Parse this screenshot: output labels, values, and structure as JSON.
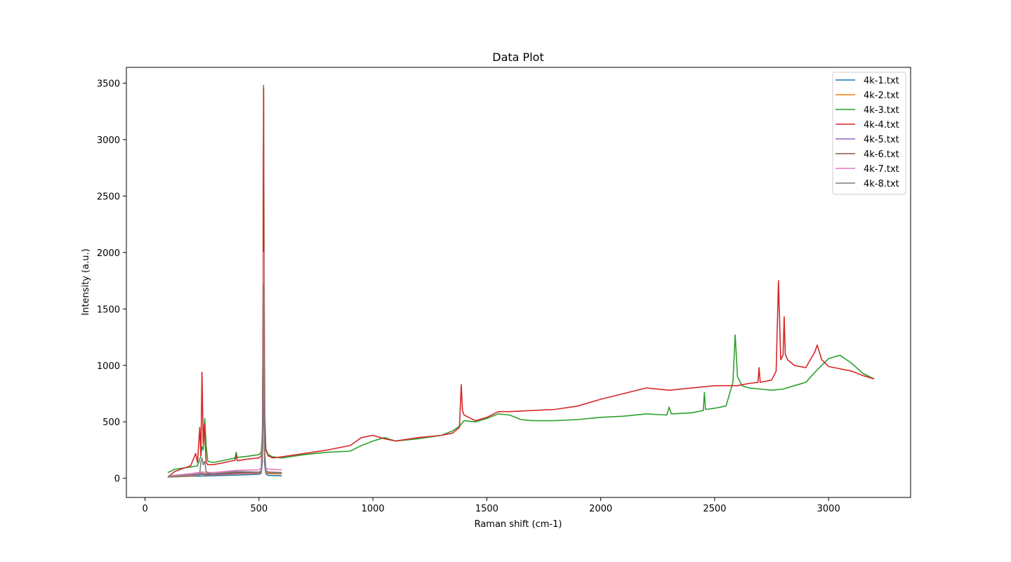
{
  "chart_data": {
    "type": "line",
    "title": "Data Plot",
    "xlabel": "Raman shift (cm-1)",
    "ylabel": "Intensity (a.u.)",
    "xlim": [
      -82,
      3360
    ],
    "ylim": [
      -170,
      3640
    ],
    "xticks": [
      0,
      500,
      1000,
      1500,
      2000,
      2500,
      3000
    ],
    "yticks": [
      0,
      500,
      1000,
      1500,
      2000,
      2500,
      3000,
      3500
    ],
    "grid": false,
    "legend_position": "top-right",
    "series": [
      {
        "name": "4k-1.txt",
        "color": "#1f77b4",
        "x": [
          100,
          200,
          250,
          300,
          400,
          500,
          510,
          515,
          518,
          520,
          522,
          525,
          530,
          540,
          600
        ],
        "y": [
          10,
          18,
          20,
          22,
          28,
          35,
          45,
          150,
          600,
          1150,
          500,
          120,
          40,
          25,
          22
        ]
      },
      {
        "name": "4k-2.txt",
        "color": "#ff7f0e",
        "x": [
          100,
          200,
          240,
          250,
          260,
          300,
          400,
          500,
          510,
          515,
          518,
          520,
          522,
          525,
          530,
          540,
          600
        ],
        "y": [
          12,
          20,
          30,
          45,
          30,
          28,
          40,
          45,
          55,
          200,
          700,
          1300,
          600,
          150,
          55,
          40,
          38
        ]
      },
      {
        "name": "4k-3.txt",
        "color": "#2ca02c",
        "x": [
          100,
          130,
          200,
          230,
          245,
          250,
          255,
          262,
          268,
          275,
          300,
          350,
          395,
          400,
          405,
          450,
          500,
          510,
          515,
          518,
          520,
          522,
          525,
          530,
          540,
          560,
          600,
          700,
          800,
          900,
          950,
          1000,
          1050,
          1100,
          1200,
          1300,
          1350,
          1380,
          1400,
          1450,
          1500,
          1550,
          1600,
          1650,
          1700,
          1800,
          1900,
          2000,
          2100,
          2200,
          2290,
          2300,
          2310,
          2400,
          2450,
          2455,
          2460,
          2500,
          2550,
          2580,
          2590,
          2595,
          2600,
          2620,
          2650,
          2700,
          2750,
          2800,
          2850,
          2900,
          2950,
          3000,
          3050,
          3100,
          3150,
          3200
        ],
        "y": [
          50,
          80,
          100,
          110,
          200,
          280,
          250,
          530,
          290,
          150,
          140,
          160,
          180,
          230,
          185,
          195,
          210,
          230,
          400,
          1700,
          3480,
          2000,
          600,
          260,
          210,
          190,
          180,
          210,
          230,
          240,
          290,
          330,
          360,
          330,
          350,
          380,
          420,
          460,
          510,
          500,
          530,
          570,
          560,
          520,
          510,
          510,
          520,
          540,
          550,
          570,
          560,
          630,
          570,
          580,
          600,
          760,
          610,
          620,
          640,
          850,
          1270,
          1100,
          900,
          820,
          800,
          790,
          780,
          790,
          820,
          850,
          960,
          1060,
          1090,
          1020,
          930,
          880
        ]
      },
      {
        "name": "4k-4.txt",
        "color": "#d62728",
        "x": [
          100,
          130,
          200,
          222,
          230,
          240,
          245,
          250,
          255,
          260,
          268,
          275,
          300,
          350,
          395,
          400,
          405,
          450,
          500,
          510,
          515,
          518,
          520,
          522,
          525,
          530,
          540,
          560,
          600,
          700,
          800,
          900,
          950,
          1000,
          1050,
          1100,
          1200,
          1300,
          1350,
          1380,
          1388,
          1393,
          1400,
          1420,
          1450,
          1500,
          1550,
          1600,
          1700,
          1800,
          1900,
          2000,
          2100,
          2200,
          2300,
          2400,
          2500,
          2600,
          2650,
          2690,
          2695,
          2700,
          2750,
          2770,
          2780,
          2790,
          2800,
          2805,
          2810,
          2820,
          2850,
          2900,
          2940,
          2950,
          2970,
          3000,
          3050,
          3100,
          3150,
          3200
        ],
        "y": [
          10,
          60,
          110,
          220,
          140,
          450,
          200,
          940,
          300,
          480,
          140,
          120,
          120,
          140,
          160,
          200,
          155,
          170,
          180,
          200,
          350,
          1500,
          3450,
          1800,
          500,
          250,
          200,
          180,
          190,
          220,
          250,
          290,
          360,
          380,
          350,
          330,
          360,
          380,
          400,
          450,
          830,
          600,
          560,
          540,
          510,
          540,
          590,
          590,
          600,
          610,
          640,
          700,
          750,
          800,
          780,
          800,
          820,
          820,
          840,
          850,
          980,
          850,
          870,
          950,
          1750,
          1050,
          1090,
          1430,
          1100,
          1050,
          1000,
          980,
          1120,
          1180,
          1050,
          990,
          970,
          950,
          910,
          880
        ]
      },
      {
        "name": "4k-5.txt",
        "color": "#9467bd",
        "x": [
          100,
          200,
          250,
          300,
          400,
          500,
          510,
          515,
          518,
          520,
          522,
          525,
          530,
          540,
          600
        ],
        "y": [
          15,
          25,
          35,
          30,
          45,
          50,
          60,
          180,
          650,
          1200,
          550,
          150,
          60,
          50,
          45
        ]
      },
      {
        "name": "4k-6.txt",
        "color": "#8c564b",
        "x": [
          100,
          200,
          250,
          300,
          400,
          500,
          510,
          515,
          518,
          520,
          522,
          525,
          530,
          540,
          600
        ],
        "y": [
          15,
          30,
          40,
          35,
          50,
          55,
          65,
          200,
          700,
          1300,
          600,
          160,
          70,
          55,
          50
        ]
      },
      {
        "name": "4k-7.txt",
        "color": "#e377c2",
        "x": [
          100,
          200,
          250,
          300,
          400,
          500,
          510,
          515,
          518,
          520,
          522,
          525,
          530,
          540,
          600
        ],
        "y": [
          20,
          40,
          55,
          50,
          70,
          75,
          90,
          400,
          1300,
          2000,
          800,
          250,
          90,
          80,
          75
        ]
      },
      {
        "name": "4k-8.txt",
        "color": "#7f7f7f",
        "x": [
          100,
          200,
          240,
          245,
          250,
          255,
          262,
          268,
          275,
          300,
          400,
          500,
          510,
          515,
          518,
          520,
          522,
          525,
          530,
          540,
          600
        ],
        "y": [
          15,
          30,
          40,
          140,
          180,
          120,
          150,
          60,
          45,
          40,
          60,
          55,
          65,
          300,
          1100,
          1720,
          700,
          200,
          65,
          50,
          45
        ]
      }
    ]
  }
}
